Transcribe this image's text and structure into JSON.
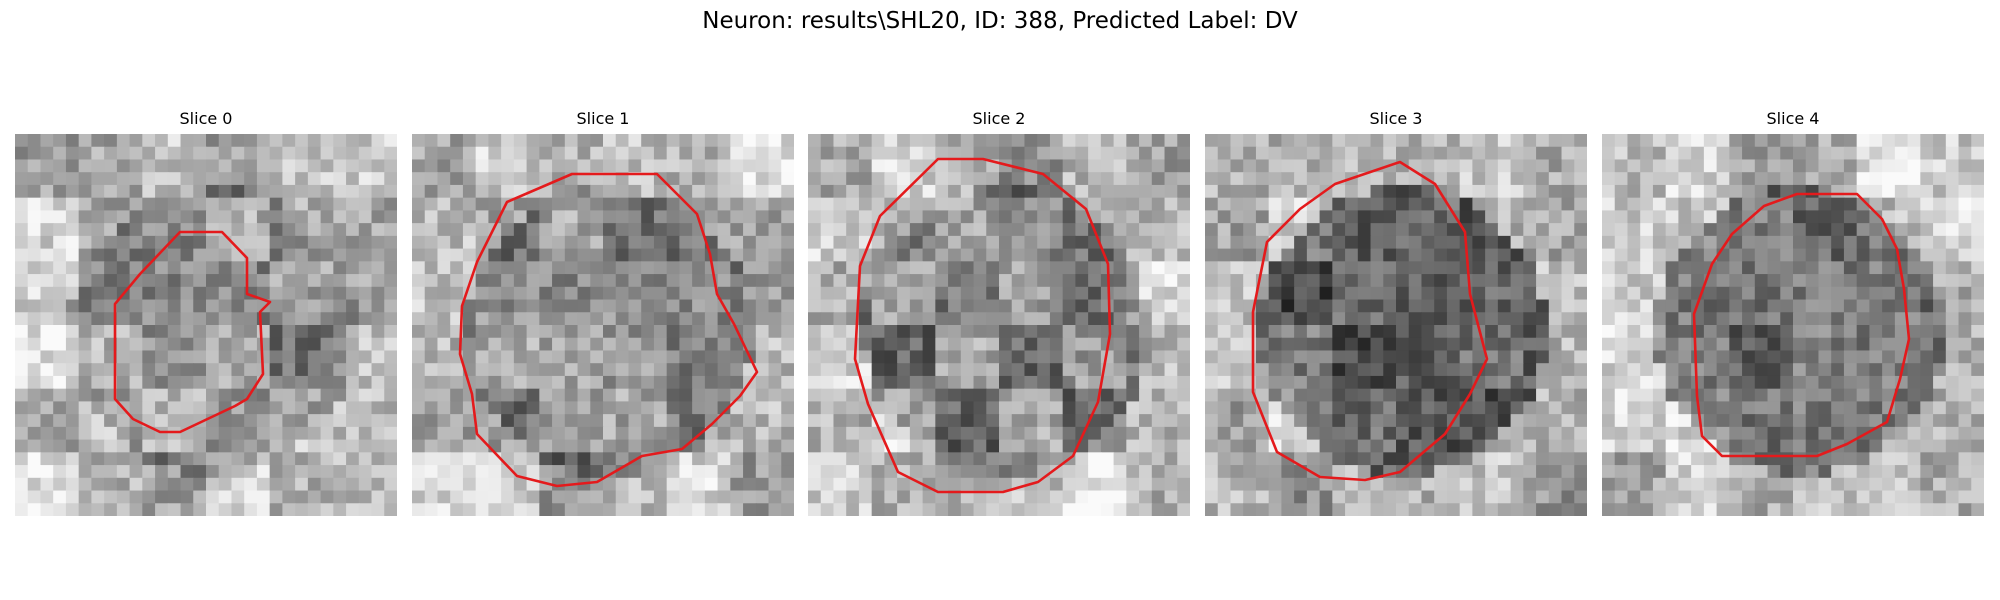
{
  "figure": {
    "title": "Neuron: results\\SHL20, ID: 388, Predicted Label: DV"
  },
  "slices": [
    {
      "title": "Slice 0",
      "tone": 0.35,
      "seed": 11
    },
    {
      "title": "Slice 1",
      "tone": 0.45,
      "seed": 23
    },
    {
      "title": "Slice 2",
      "tone": 0.5,
      "seed": 37
    },
    {
      "title": "Slice 3",
      "tone": 0.75,
      "seed": 53
    },
    {
      "title": "Slice 4",
      "tone": 0.6,
      "seed": 71
    }
  ],
  "contour_color": "#e41a1c",
  "image_colormap": "gray"
}
